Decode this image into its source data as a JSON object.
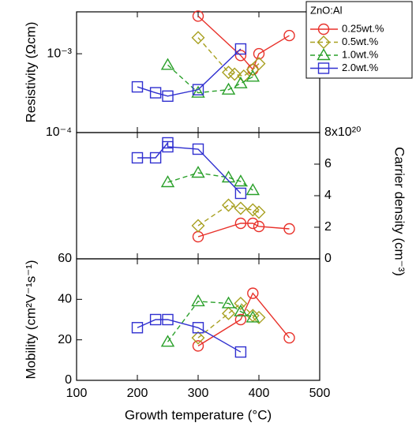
{
  "chart_data": [
    {
      "type": "line",
      "ylabel": "Resistivity (Ωcm)",
      "yscale": "log",
      "ylim": [
        0.0001,
        0.0034
      ],
      "yticks": [
        {
          "value": 0.001,
          "label": "10⁻³"
        },
        {
          "value": 0.0001,
          "label": "10⁻⁴"
        }
      ],
      "legend_title": "ZnO:Al",
      "legend": "upper right",
      "series": [
        {
          "name": "0.25wt.%",
          "color": "#e8312a",
          "marker": "circle",
          "dash": false,
          "x": [
            300,
            370,
            390,
            400,
            450
          ],
          "values": [
            0.003,
            0.00095,
            0.00063,
            0.001,
            0.0017
          ]
        },
        {
          "name": "0.5wt.%",
          "color": "#a8a020",
          "marker": "diamond",
          "dash": true,
          "x": [
            300,
            350,
            360,
            375,
            390,
            400
          ],
          "values": [
            0.0016,
            0.00058,
            0.00055,
            0.00052,
            0.00063,
            0.00075
          ]
        },
        {
          "name": "1.0wt.%",
          "color": "#2aa02a",
          "marker": "triangle",
          "dash": true,
          "x": [
            250,
            300,
            350,
            370,
            390
          ],
          "values": [
            0.00072,
            0.00032,
            0.00035,
            0.00042,
            0.00051
          ]
        },
        {
          "name": "2.0wt.%",
          "color": "#3030d0",
          "marker": "square",
          "dash": false,
          "x": [
            200,
            230,
            250,
            300,
            370
          ],
          "values": [
            0.00038,
            0.00032,
            0.00029,
            0.00035,
            0.00115
          ]
        }
      ]
    },
    {
      "type": "line",
      "y2label": "Carrier density (cm⁻³)",
      "y2lim": [
        0,
        8
      ],
      "y2ticks": [
        0,
        2,
        4,
        6,
        {
          "value": 8,
          "label": "8x10²⁰"
        }
      ],
      "series": [
        {
          "color": "#e8312a",
          "marker": "circle",
          "dash": false,
          "axis": "y2",
          "x": [
            300,
            370,
            390,
            400,
            450
          ],
          "values": [
            1.4,
            2.25,
            2.25,
            2.05,
            1.9
          ]
        },
        {
          "color": "#a8a020",
          "marker": "diamond",
          "dash": true,
          "axis": "y2",
          "x": [
            300,
            350,
            370,
            390,
            400
          ],
          "values": [
            2.1,
            3.4,
            3.2,
            3.1,
            2.95
          ]
        },
        {
          "color": "#2aa02a",
          "marker": "triangle",
          "dash": true,
          "axis": "y2",
          "x": [
            250,
            300,
            350,
            370,
            390
          ],
          "values": [
            4.85,
            5.45,
            5.15,
            4.9,
            4.35
          ]
        },
        {
          "color": "#3030d0",
          "marker": "square",
          "dash": false,
          "axis": "y2",
          "x": [
            200,
            230,
            250,
            250,
            300,
            370
          ],
          "values": [
            6.4,
            6.4,
            7.35,
            7.1,
            6.95,
            4.15
          ]
        }
      ]
    },
    {
      "type": "line",
      "ylabel": "Mobility (cm²V⁻¹s⁻¹)",
      "ylim": [
        0,
        60
      ],
      "yticks": [
        0,
        20,
        40,
        60
      ],
      "xlabel": "Growth temperature (°C)",
      "xlim": [
        100,
        500
      ],
      "xticks": [
        100,
        200,
        300,
        400,
        500
      ],
      "series": [
        {
          "color": "#e8312a",
          "marker": "circle",
          "dash": false,
          "x": [
            300,
            370,
            390,
            450
          ],
          "values": [
            17,
            30,
            43,
            21
          ]
        },
        {
          "color": "#a8a020",
          "marker": "diamond",
          "dash": true,
          "x": [
            300,
            350,
            370,
            390,
            400
          ],
          "values": [
            21,
            33,
            38,
            32,
            31
          ]
        },
        {
          "color": "#2aa02a",
          "marker": "triangle",
          "dash": true,
          "x": [
            250,
            300,
            350,
            370,
            390
          ],
          "values": [
            19,
            39,
            38,
            34,
            31
          ]
        },
        {
          "color": "#3030d0",
          "marker": "square",
          "dash": false,
          "x": [
            200,
            230,
            250,
            300,
            370
          ],
          "values": [
            26,
            30,
            30,
            26,
            14
          ]
        }
      ]
    }
  ]
}
